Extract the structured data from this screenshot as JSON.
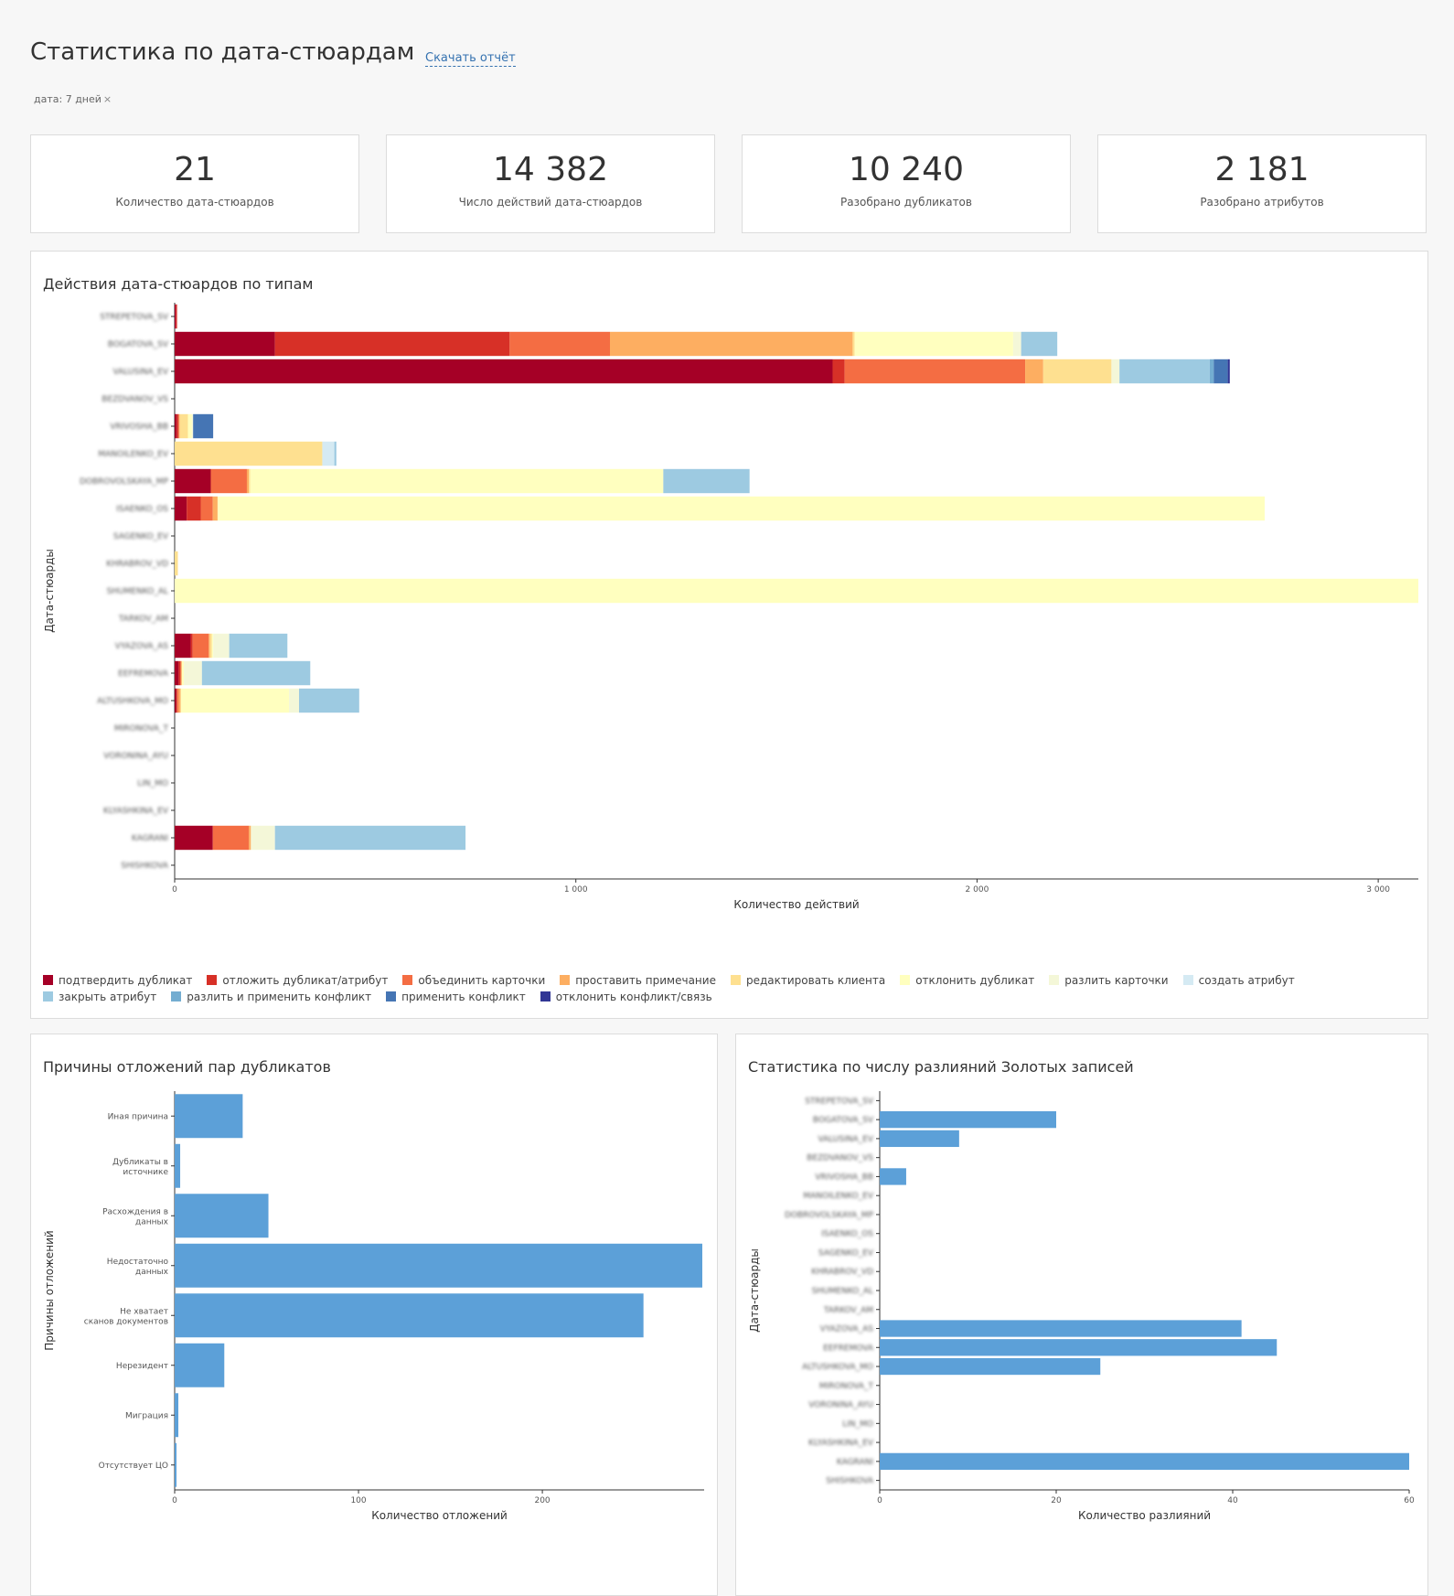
{
  "header": {
    "title": "Статистика по дата-стюардам",
    "report_link": "Скачать отчёт",
    "filter_label": "дата: 7 дней",
    "filter_close": "×"
  },
  "kpis": [
    {
      "value": "21",
      "label": "Количество дата-стюардов"
    },
    {
      "value": "14 382",
      "label": "Число действий дата-стюардов"
    },
    {
      "value": "10 240",
      "label": "Разобрано дубликатов"
    },
    {
      "value": "2 181",
      "label": "Разобрано атрибутов"
    }
  ],
  "panels": {
    "actions_title": "Действия дата-стюардов по типам",
    "postpone_title": "Причины отложений пар дубликатов",
    "split_title": "Статистика по числу разлияний Золотых записей"
  },
  "colors": {
    "blue_bar": "#5ca0d8",
    "axis": "#333333"
  },
  "chart_data": [
    {
      "type": "bar",
      "orientation": "horizontal",
      "stacked": true,
      "title": "Действия дата-стюардов по типам",
      "xlabel": "Количество действий",
      "ylabel": "Дата-стюарды",
      "xlim": [
        0,
        3100
      ],
      "xticks": [
        0,
        1000,
        2000,
        3000
      ],
      "xtick_labels": [
        "0",
        "1 000",
        "2 000",
        "3 000"
      ],
      "categories": [
        "STREPETOVA_SV",
        "BOGATOVA_SV",
        "VALUSINA_EV",
        "BEZDVANOV_VS",
        "VRIVOSHA_BB",
        "MANOILENKO_EV",
        "DOBROVOLSKAYA_MP",
        "ISAENKO_OS",
        "SAGENKO_EV",
        "KHRABROV_VD",
        "SHUMENKO_AL",
        "TARKOV_AM",
        "VYAZOVA_AS",
        "EEFREMOVA",
        "ALTUSHKOVA_MO",
        "MIRONOVA_T",
        "VORONINA_AYU",
        "LIN_MO",
        "KLYASHKINA_EV",
        "KAGRANI",
        "SHISHKOVA"
      ],
      "legend_position": "bottom-left",
      "series": [
        {
          "name": "подтвердить дубликат",
          "color": "#a50026",
          "values": [
            3,
            250,
            1640,
            0,
            5,
            0,
            90,
            30,
            0,
            0,
            0,
            0,
            40,
            10,
            5,
            0,
            0,
            0,
            0,
            95,
            0
          ]
        },
        {
          "name": "отложить дубликат/атрибут",
          "color": "#d73027",
          "values": [
            3,
            585,
            30,
            0,
            5,
            0,
            0,
            35,
            0,
            0,
            0,
            0,
            5,
            5,
            0,
            0,
            0,
            0,
            0,
            0,
            0
          ]
        },
        {
          "name": "объединить карточки",
          "color": "#f46d43",
          "values": [
            0,
            250,
            450,
            0,
            0,
            0,
            90,
            30,
            0,
            0,
            0,
            0,
            40,
            0,
            5,
            0,
            0,
            0,
            0,
            90,
            0
          ]
        },
        {
          "name": "проставить примечание",
          "color": "#fdae61",
          "values": [
            0,
            605,
            45,
            0,
            3,
            0,
            5,
            12,
            0,
            0,
            0,
            0,
            3,
            3,
            5,
            0,
            0,
            0,
            0,
            5,
            0
          ]
        },
        {
          "name": "редактировать клиента",
          "color": "#fee090",
          "values": [
            0,
            5,
            170,
            0,
            20,
            368,
            3,
            0,
            0,
            8,
            0,
            0,
            5,
            0,
            0,
            0,
            0,
            0,
            0,
            0,
            0
          ]
        },
        {
          "name": "отклонить дубликат",
          "color": "#ffffbf",
          "values": [
            0,
            395,
            0,
            0,
            10,
            0,
            1030,
            2610,
            0,
            0,
            3100,
            0,
            3,
            5,
            270,
            0,
            0,
            0,
            0,
            0,
            0
          ]
        },
        {
          "name": "разлить карточки",
          "color": "#f4f7d8",
          "values": [
            0,
            20,
            20,
            0,
            3,
            0,
            0,
            0,
            0,
            0,
            0,
            0,
            40,
            45,
            25,
            0,
            0,
            0,
            0,
            60,
            0
          ]
        },
        {
          "name": "создать атрибут",
          "color": "#d5eaf3",
          "values": [
            0,
            0,
            0,
            0,
            0,
            30,
            0,
            0,
            0,
            0,
            0,
            0,
            0,
            0,
            0,
            0,
            0,
            0,
            0,
            0,
            0
          ]
        },
        {
          "name": "закрыть атрибут",
          "color": "#9dcae1",
          "values": [
            0,
            90,
            225,
            0,
            0,
            5,
            215,
            0,
            0,
            0,
            0,
            0,
            145,
            270,
            150,
            0,
            0,
            0,
            0,
            475,
            0
          ]
        },
        {
          "name": "разлить и применить конфликт",
          "color": "#74add1",
          "values": [
            0,
            0,
            10,
            0,
            0,
            0,
            0,
            0,
            0,
            0,
            0,
            0,
            0,
            0,
            0,
            0,
            0,
            0,
            0,
            0,
            0
          ]
        },
        {
          "name": "применить конфликт",
          "color": "#4575b4",
          "values": [
            0,
            0,
            35,
            0,
            50,
            0,
            0,
            0,
            0,
            0,
            0,
            0,
            0,
            0,
            0,
            0,
            0,
            0,
            0,
            0,
            0
          ]
        },
        {
          "name": "отклонить конфликт/связь",
          "color": "#313695",
          "values": [
            0,
            0,
            5,
            0,
            0,
            0,
            0,
            0,
            0,
            0,
            0,
            0,
            0,
            0,
            0,
            0,
            0,
            0,
            0,
            0,
            0
          ]
        }
      ]
    },
    {
      "type": "bar",
      "orientation": "horizontal",
      "title": "Причины отложений пар дубликатов",
      "xlabel": "Количество отложений",
      "ylabel": "Причины отложений",
      "xlim": [
        0,
        288
      ],
      "xticks": [
        0,
        100,
        200
      ],
      "xtick_labels": [
        "0",
        "100",
        "200"
      ],
      "categories": [
        "Иная причина",
        "Дубликаты в источнике",
        "Расхождения в данных",
        "Недостаточно данных",
        "Не хватает сканов документов",
        "Нерезидент",
        "Миграция",
        "Отсутствует ЦО"
      ],
      "values": [
        37,
        3,
        51,
        287,
        255,
        27,
        2,
        1
      ]
    },
    {
      "type": "bar",
      "orientation": "horizontal",
      "title": "Статистика по числу разлияний Золотых записей",
      "xlabel": "Количество разлияний",
      "ylabel": "Дата-стюарды",
      "xlim": [
        0,
        60
      ],
      "xticks": [
        0,
        20,
        40,
        60
      ],
      "xtick_labels": [
        "0",
        "20",
        "40",
        "60"
      ],
      "categories": [
        "STREPETOVA_SV",
        "BOGATOVA_SV",
        "VALUSINA_EV",
        "BEZDVANOV_VS",
        "VRIVOSHA_BB",
        "MANOILENKO_EV",
        "DOBROVOLSKAYA_MP",
        "ISAENKO_OS",
        "SAGENKO_EV",
        "KHRABROV_VD",
        "SHUMENKO_AL",
        "TARKOV_AM",
        "VYAZOVA_AS",
        "EEFREMOVA",
        "ALTUSHKOVA_MO",
        "MIRONOVA_T",
        "VORONINA_AYU",
        "LIN_MO",
        "KLYASHKINA_EV",
        "KAGRANI",
        "SHISHKOVA"
      ],
      "values": [
        0,
        20,
        9,
        0,
        3,
        0,
        0,
        0,
        0,
        0,
        0,
        0,
        41,
        45,
        25,
        0,
        0,
        0,
        0,
        60,
        0
      ]
    }
  ]
}
